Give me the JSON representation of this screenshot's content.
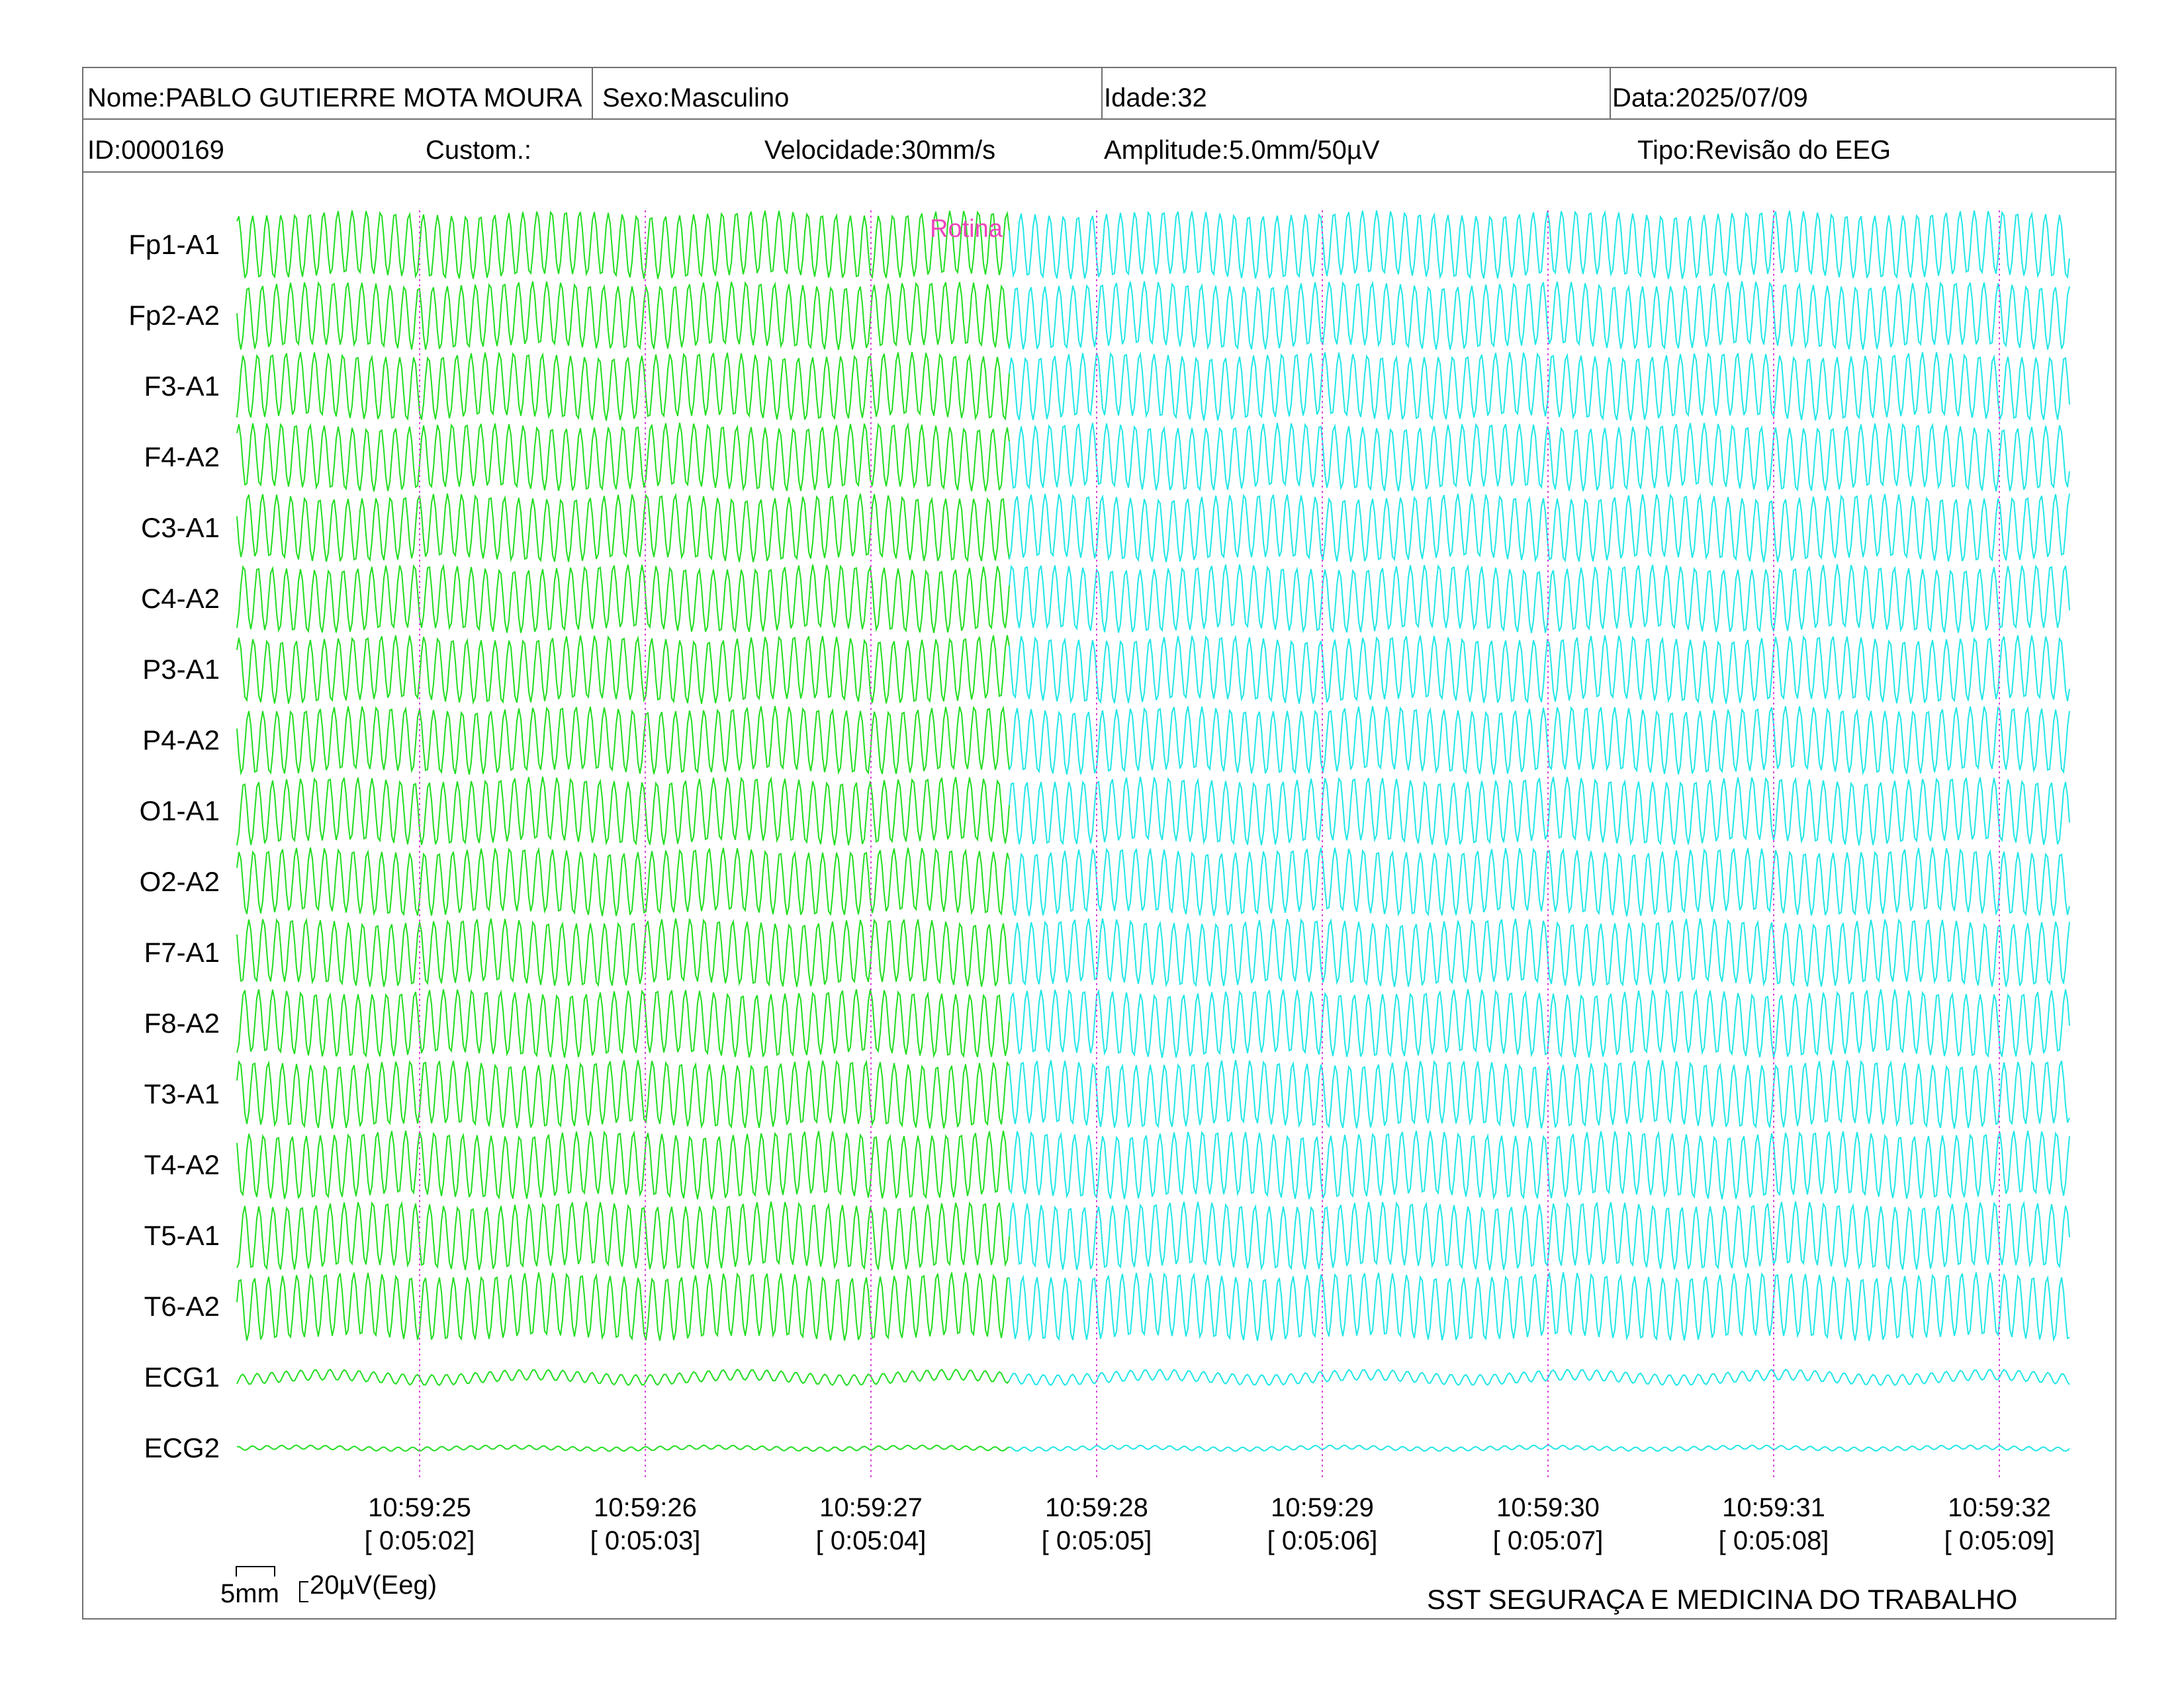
{
  "header": {
    "nome": "Nome:PABLO GUTIERRE MOTA MOURA",
    "sexo": "Sexo:Masculino",
    "idade": "Idade:32",
    "data": "Data:2025/07/09",
    "id": "ID:0000169",
    "custom": "Custom.:",
    "velocidade": "Velocidade:30mm/s",
    "amplitude": "Amplitude:5.0mm/50µV",
    "tipo": "Tipo:Revisão do EEG"
  },
  "channels": [
    "Fp1-A1",
    "Fp2-A2",
    "F3-A1",
    "F4-A2",
    "C3-A1",
    "C4-A2",
    "P3-A1",
    "P4-A2",
    "O1-A1",
    "O2-A2",
    "F7-A1",
    "F8-A2",
    "T3-A1",
    "T4-A2",
    "T5-A1",
    "T6-A2",
    "ECG1",
    "ECG2"
  ],
  "time_marks": [
    {
      "clock": "10:59:25",
      "elapsed": "[ 0:05:02]"
    },
    {
      "clock": "10:59:26",
      "elapsed": "[ 0:05:03]"
    },
    {
      "clock": "10:59:27",
      "elapsed": "[ 0:05:04]"
    },
    {
      "clock": "10:59:28",
      "elapsed": "[ 0:05:05]"
    },
    {
      "clock": "10:59:29",
      "elapsed": "[ 0:05:06]"
    },
    {
      "clock": "10:59:30",
      "elapsed": "[ 0:05:07]"
    },
    {
      "clock": "10:59:31",
      "elapsed": "[ 0:05:08]"
    },
    {
      "clock": "10:59:32",
      "elapsed": "[ 0:05:09]"
    }
  ],
  "event_note": "Rotina",
  "scale": {
    "time_label": "5mm",
    "amp_label": "20µV(Eeg)"
  },
  "footer": {
    "company": "SST SEGURAÇA E MEDICINA DO TRABALHO"
  },
  "colors": {
    "trace_past": "#22dd22",
    "trace_recent": "#22e6e6",
    "marker": "#dd44dd",
    "note": "#ee44bb",
    "border": "#707070"
  }
}
